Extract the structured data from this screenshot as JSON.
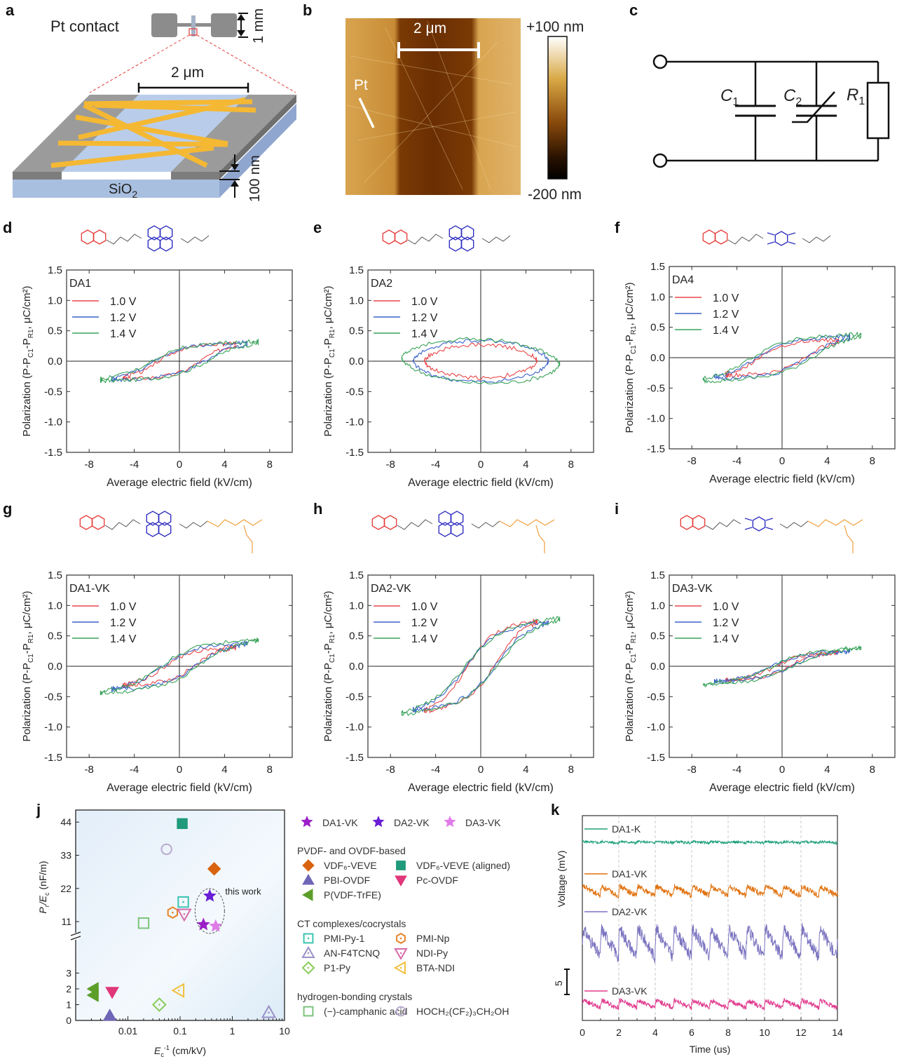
{
  "panel_labels": [
    "a",
    "b",
    "c",
    "d",
    "e",
    "f",
    "g",
    "h",
    "i",
    "j",
    "k"
  ],
  "panel_a": {
    "contact_label": "Pt contact",
    "scale_mm": "1 mm",
    "scale_um": "2 μm",
    "thickness": "100 nm",
    "substrate": "SiO",
    "substrate_sub": "2"
  },
  "panel_b": {
    "scale": "2 μm",
    "pt_label": "Pt",
    "colorbar_max": "+100 nm",
    "colorbar_min": "-200 nm"
  },
  "panel_c": {
    "c1": "C",
    "c1_sub": "1",
    "c2": "C",
    "c2_sub": "2",
    "r1": "R",
    "r1_sub": "1"
  },
  "colors": {
    "v10": "#e8474a",
    "v12": "#3a62c8",
    "v14": "#3aa35a",
    "donor": "#e53935",
    "acceptor": "#3030c0",
    "peptide": "#f0a040"
  },
  "chart_data": [
    {
      "id": "d",
      "type": "line",
      "title": "DA1",
      "xlabel": "Average electric field (kV/cm)",
      "ylabel": "Polarization (P-P_C1-P_R1, μC/cm²)",
      "xlim": [
        -10,
        10
      ],
      "ylim": [
        -1.5,
        1.5
      ],
      "xticks": [
        "-8",
        "-4",
        "0",
        "4",
        "8"
      ],
      "yticks": [
        "1.5",
        "1.0",
        "0.5",
        "0.0",
        "-0.5",
        "-1.0",
        "-1.5"
      ],
      "series": [
        {
          "name": "1.0 V",
          "emax": 5.0,
          "pmax": 0.1,
          "pr": 0.22,
          "ec": 3.5,
          "psat": 0.3
        },
        {
          "name": "1.2 V",
          "emax": 6.0,
          "pmax": 0.14,
          "pr": 0.23,
          "ec": 4.0,
          "psat": 0.31
        },
        {
          "name": "1.4 V",
          "emax": 7.0,
          "pmax": 0.15,
          "pr": 0.25,
          "ec": 4.6,
          "psat": 0.33
        }
      ]
    },
    {
      "id": "e",
      "type": "line",
      "title": "DA2",
      "xlabel": "Average electric field (kV/cm)",
      "ylabel": "Polarization (P-P_C1-P_R1, μC/cm²)",
      "xlim": [
        -10,
        10
      ],
      "ylim": [
        -1.5,
        1.5
      ],
      "xticks": [
        "-8",
        "-4",
        "0",
        "4",
        "8"
      ],
      "yticks": [
        "1.5",
        "1.0",
        "0.5",
        "0.0",
        "-0.5",
        "-1.0",
        "-1.5"
      ],
      "series": [
        {
          "name": "1.0 V",
          "emax": 5.0,
          "pmax": 0.0,
          "pr": 0.25,
          "ec": 5.0,
          "psat": 0.27,
          "ellipse": true
        },
        {
          "name": "1.2 V",
          "emax": 6.0,
          "pmax": 0.0,
          "pr": 0.32,
          "ec": 6.0,
          "psat": 0.34,
          "ellipse": true
        },
        {
          "name": "1.4 V",
          "emax": 7.0,
          "pmax": -0.05,
          "pr": 0.33,
          "ec": 7.0,
          "psat": 0.36,
          "ellipse": true
        }
      ]
    },
    {
      "id": "f",
      "type": "line",
      "title": "DA4",
      "xlabel": "Average electric field (kV/cm)",
      "ylabel": "Polarization (P-P_C1-P_R1, μC/cm²)",
      "xlim": [
        -10,
        10
      ],
      "ylim": [
        -1.5,
        1.5
      ],
      "xticks": [
        "-8",
        "-4",
        "0",
        "4",
        "8"
      ],
      "yticks": [
        "1.5",
        "1.0",
        "0.5",
        "0.0",
        "-0.5",
        "-1.0",
        "-1.5"
      ],
      "series": [
        {
          "name": "1.0 V",
          "emax": 5.0,
          "pmax": 0.12,
          "pr": 0.18,
          "ec": 3.8,
          "psat": 0.3
        },
        {
          "name": "1.2 V",
          "emax": 6.0,
          "pmax": 0.16,
          "pr": 0.2,
          "ec": 4.2,
          "psat": 0.35
        },
        {
          "name": "1.4 V",
          "emax": 7.0,
          "pmax": 0.22,
          "pr": 0.3,
          "ec": 5.0,
          "psat": 0.38
        }
      ]
    },
    {
      "id": "g",
      "type": "line",
      "title": "DA1-VK",
      "xlabel": "Average electric field (kV/cm)",
      "ylabel": "Polarization (P-P_C1-P_R1, μC/cm²)",
      "xlim": [
        -10,
        10
      ],
      "ylim": [
        -1.5,
        1.5
      ],
      "xticks": [
        "-8",
        "-4",
        "0",
        "4",
        "8"
      ],
      "yticks": [
        "1.5",
        "1.0",
        "0.5",
        "0.0",
        "-0.5",
        "-1.0",
        "-1.5"
      ],
      "series": [
        {
          "name": "1.0 V",
          "emax": 5.0,
          "pmax": 0.28,
          "pr": 0.2,
          "ec": 2.5,
          "psat": 0.3
        },
        {
          "name": "1.2 V",
          "emax": 6.0,
          "pmax": 0.32,
          "pr": 0.3,
          "ec": 2.8,
          "psat": 0.36
        },
        {
          "name": "1.4 V",
          "emax": 7.0,
          "pmax": 0.33,
          "pr": 0.35,
          "ec": 3.2,
          "psat": 0.42
        }
      ]
    },
    {
      "id": "h",
      "type": "line",
      "title": "DA2-VK",
      "xlabel": "Average electric field (kV/cm)",
      "ylabel": "Polarization (P-P_C1-P_R1, μC/cm²)",
      "xlim": [
        -10,
        10
      ],
      "ylim": [
        -1.5,
        1.5
      ],
      "xticks": [
        "-8",
        "-4",
        "0",
        "4",
        "8"
      ],
      "yticks": [
        "1.5",
        "1.0",
        "0.5",
        "0.0",
        "-0.5",
        "-1.0",
        "-1.5"
      ],
      "series": [
        {
          "name": "1.0 V",
          "emax": 5.0,
          "pmax": 0.7,
          "pr": 0.58,
          "ec": 2.3,
          "psat": 0.68
        },
        {
          "name": "1.2 V",
          "emax": 6.0,
          "pmax": 0.65,
          "pr": 0.55,
          "ec": 2.5,
          "psat": 0.68
        },
        {
          "name": "1.4 V",
          "emax": 7.0,
          "pmax": 0.6,
          "pr": 0.6,
          "ec": 2.7,
          "psat": 0.75
        }
      ]
    },
    {
      "id": "i",
      "type": "line",
      "title": "DA3-VK",
      "xlabel": "Average electric field (kV/cm)",
      "ylabel": "Polarization (P-P_C1-P_R1, μC/cm²)",
      "xlim": [
        -10,
        10
      ],
      "ylim": [
        -1.5,
        1.5
      ],
      "xticks": [
        "-8",
        "-4",
        "0",
        "4",
        "8"
      ],
      "yticks": [
        "1.5",
        "1.0",
        "0.5",
        "0.0",
        "-0.5",
        "-1.0",
        "-1.5"
      ],
      "series": [
        {
          "name": "1.0 V",
          "emax": 5.0,
          "pmax": 0.18,
          "pr": 0.18,
          "ec": 1.2,
          "psat": 0.22
        },
        {
          "name": "1.2 V",
          "emax": 6.0,
          "pmax": 0.2,
          "pr": 0.17,
          "ec": 1.6,
          "psat": 0.24
        },
        {
          "name": "1.4 V",
          "emax": 7.0,
          "pmax": 0.27,
          "pr": 0.2,
          "ec": 1.8,
          "psat": 0.28
        }
      ]
    },
    {
      "id": "j",
      "type": "scatter",
      "xlabel": "E_c^-1 (cm/kV)",
      "ylabel": "P_r/E_c (nF/m)",
      "xscale": "log",
      "xlim": [
        0.001,
        10
      ],
      "xticks": [
        "0.01",
        "0.1",
        "1",
        "10"
      ],
      "yticks_upper": [
        "44",
        "33",
        "22",
        "11"
      ],
      "yticks_lower": [
        "3",
        "2",
        "1",
        "0"
      ],
      "ybreak": "between 3.5 and 8",
      "annotation": "this work",
      "points": [
        {
          "name": "DA1-VK",
          "x": 0.28,
          "y": 10.0,
          "marker": "star",
          "color": "#9b1fc7",
          "filled": true
        },
        {
          "name": "DA2-VK",
          "x": 0.37,
          "y": 19.5,
          "marker": "star",
          "color": "#6a1ed6",
          "filled": true
        },
        {
          "name": "DA3-VK",
          "x": 0.48,
          "y": 9.5,
          "marker": "star",
          "color": "#e07be8",
          "filled": true
        },
        {
          "name": "VDF6-VEVE",
          "x": 0.45,
          "y": 28.5,
          "marker": "diamond",
          "color": "#d9620f",
          "filled": true
        },
        {
          "name": "VDF6-VEVE (aligned)",
          "x": 0.11,
          "y": 43.5,
          "marker": "square",
          "color": "#1f9a7a",
          "filled": true
        },
        {
          "name": "PBI-OVDF",
          "x": 0.0045,
          "y": 0.3,
          "marker": "triangle-up",
          "color": "#6f66b8",
          "filled": true
        },
        {
          "name": "Pc-OVDF",
          "x": 0.005,
          "y": 1.8,
          "marker": "triangle-down",
          "color": "#e0367a",
          "filled": true
        },
        {
          "name": "P(VDF-TrFE)",
          "x": 0.0022,
          "y": 2.0,
          "marker": "triangle-left",
          "color": "#5c9e2a",
          "filled": true
        },
        {
          "name": "P(VDF-TrFE)",
          "x": 0.0022,
          "y": 1.6,
          "marker": "triangle-left",
          "color": "#5c9e2a",
          "filled": true
        },
        {
          "name": "PMI-Py-1",
          "x": 0.115,
          "y": 17.5,
          "marker": "square-dot",
          "color": "#3cc4b0",
          "filled": false
        },
        {
          "name": "PMI-Np",
          "x": 0.072,
          "y": 14.0,
          "marker": "hexagon-dot",
          "color": "#e8842a",
          "filled": false
        },
        {
          "name": "NDI-Py",
          "x": 0.12,
          "y": 13.5,
          "marker": "triangle-down-dot",
          "color": "#d86aa8",
          "filled": false
        },
        {
          "name": "AN-F4TCNQ",
          "x": 5.0,
          "y": 0.5,
          "marker": "triangle-up-dot",
          "color": "#9a90c8",
          "filled": false
        },
        {
          "name": "P1-Py",
          "x": 0.04,
          "y": 1.0,
          "marker": "diamond-dot",
          "color": "#8acb5a",
          "filled": false
        },
        {
          "name": "BTA-NDI",
          "x": 0.095,
          "y": 1.9,
          "marker": "triangle-left-dot",
          "color": "#f0c040",
          "filled": false
        },
        {
          "name": "(-)-camphanic acid",
          "x": 0.02,
          "y": 10.5,
          "marker": "square",
          "color": "#7cc47c",
          "filled": false
        },
        {
          "name": "HOCH2(CF2)3CH2OH",
          "x": 0.055,
          "y": 35.0,
          "marker": "circle",
          "color": "#b9a9d0",
          "filled": false
        }
      ],
      "legend": {
        "top": [
          {
            "label": "DA1-VK",
            "color": "#9b1fc7"
          },
          {
            "label": "DA2-VK",
            "color": "#6a1ed6"
          },
          {
            "label": "DA3-VK",
            "color": "#e07be8"
          }
        ],
        "groups": [
          {
            "title": "PVDF- and OVDF-based",
            "items": [
              {
                "label": "VDF₆-VEVE",
                "marker": "diamond",
                "color": "#d9620f",
                "filled": true
              },
              {
                "label": "VDF₆-VEVE (aligned)",
                "marker": "square",
                "color": "#1f9a7a",
                "filled": true
              },
              {
                "label": "PBI-OVDF",
                "marker": "triangle-up",
                "color": "#6f66b8",
                "filled": true
              },
              {
                "label": "Pc-OVDF",
                "marker": "triangle-down",
                "color": "#e0367a",
                "filled": true
              },
              {
                "label": "P(VDF-TrFE)",
                "marker": "triangle-left",
                "color": "#5c9e2a",
                "filled": true
              }
            ]
          },
          {
            "title": "CT complexes/cocrystals",
            "items": [
              {
                "label": "PMI-Py-1",
                "marker": "square-dot",
                "color": "#3cc4b0",
                "filled": false
              },
              {
                "label": "PMI-Np",
                "marker": "hexagon-dot",
                "color": "#e8842a",
                "filled": false
              },
              {
                "label": "AN-F4TCNQ",
                "marker": "triangle-up-dot",
                "color": "#9a90c8",
                "filled": false
              },
              {
                "label": "NDI-Py",
                "marker": "triangle-down-dot",
                "color": "#d86aa8",
                "filled": false
              },
              {
                "label": "P1-Py",
                "marker": "diamond-dot",
                "color": "#8acb5a",
                "filled": false
              },
              {
                "label": "BTA-NDI",
                "marker": "triangle-left-dot",
                "color": "#f0c040",
                "filled": false
              }
            ]
          },
          {
            "title": "hydrogen-bonding crystals",
            "items": [
              {
                "label": "(−)-camphanic acid",
                "marker": "square",
                "color": "#7cc47c",
                "filled": false
              },
              {
                "label": "HOCH₂(CF₂)₃CH₂OH",
                "marker": "circle",
                "color": "#b9a9d0",
                "filled": false
              }
            ]
          }
        ]
      }
    },
    {
      "id": "k",
      "type": "line",
      "xlabel": "Time (us)",
      "ylabel": "Voltage (mV)",
      "xlim": [
        0,
        14
      ],
      "xticks": [
        "0",
        "2",
        "4",
        "6",
        "8",
        "10",
        "12",
        "14"
      ],
      "scalebar": "5",
      "period_us": 1.0,
      "series": [
        {
          "name": "DA1-K",
          "color": "#1fa07a",
          "amplitude_mV": 0.3,
          "offset_rank": 0
        },
        {
          "name": "DA1-VK",
          "color": "#e0720f",
          "amplitude_mV": 2.0,
          "offset_rank": 1
        },
        {
          "name": "DA2-VK",
          "color": "#7b74c0",
          "amplitude_mV": 6.0,
          "offset_rank": 2
        },
        {
          "name": "DA3-VK",
          "color": "#e03a8e",
          "amplitude_mV": 1.6,
          "offset_rank": 3
        }
      ]
    }
  ]
}
